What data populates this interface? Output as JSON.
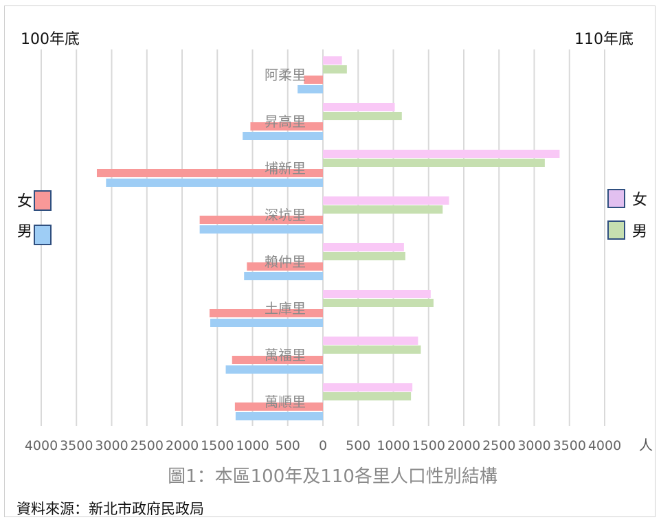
{
  "chart_data": {
    "type": "bar",
    "orientation": "horizontal",
    "layout": "butterfly",
    "caption": "圖1：本區100年及110各里人口性別結構",
    "source": "資料來源：新北市政府民政局",
    "unit_label": "人",
    "left_title": "100年底",
    "right_title": "110年底",
    "categories": [
      "阿柔里",
      "昇高里",
      "埔新里",
      "深坑里",
      "賴仲里",
      "土庫里",
      "萬福里",
      "萬順里"
    ],
    "left": {
      "series": [
        {
          "name": "女",
          "color": "#f89898",
          "values": [
            270,
            1030,
            3210,
            1750,
            1080,
            1610,
            1290,
            1250
          ]
        },
        {
          "name": "男",
          "color": "#9ecdf5",
          "values": [
            360,
            1140,
            3080,
            1750,
            1120,
            1600,
            1380,
            1240
          ]
        }
      ]
    },
    "right": {
      "series": [
        {
          "name": "女",
          "color": "#f9c8f6",
          "values": [
            270,
            1020,
            3360,
            1790,
            1150,
            1530,
            1350,
            1270
          ]
        },
        {
          "name": "男",
          "color": "#c6dfb0",
          "values": [
            340,
            1120,
            3150,
            1700,
            1170,
            1570,
            1390,
            1250
          ]
        }
      ]
    },
    "x_ticks_left": [
      "4000",
      "3500",
      "3000",
      "2500",
      "2000",
      "1500",
      "1000",
      "500",
      "0"
    ],
    "x_ticks_right": [
      "500",
      "1000",
      "1500",
      "2000",
      "2500",
      "3000",
      "3500",
      "4000"
    ],
    "xlim": [
      0,
      4000
    ],
    "grid": true,
    "legend_left": [
      {
        "label": "女",
        "color": "#f89898"
      },
      {
        "label": "男",
        "color": "#9ecdf5"
      }
    ],
    "legend_right": [
      {
        "label": "女",
        "color": "#e2c0f0"
      },
      {
        "label": "男",
        "color": "#c6dfb0"
      }
    ]
  }
}
